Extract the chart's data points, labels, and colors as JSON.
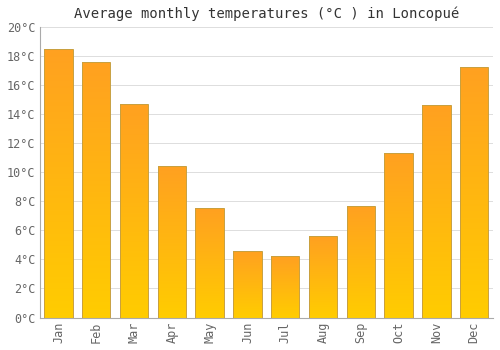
{
  "title": "Average monthly temperatures (°C ) in Loncopué",
  "months": [
    "Jan",
    "Feb",
    "Mar",
    "Apr",
    "May",
    "Jun",
    "Jul",
    "Aug",
    "Sep",
    "Oct",
    "Nov",
    "Dec"
  ],
  "values": [
    18.5,
    17.6,
    14.7,
    10.4,
    7.5,
    4.6,
    4.2,
    5.6,
    7.7,
    11.3,
    14.6,
    17.2
  ],
  "ylim": [
    0,
    20
  ],
  "yticks": [
    0,
    2,
    4,
    6,
    8,
    10,
    12,
    14,
    16,
    18,
    20
  ],
  "ytick_labels": [
    "0°C",
    "2°C",
    "4°C",
    "6°C",
    "8°C",
    "10°C",
    "12°C",
    "14°C",
    "16°C",
    "18°C",
    "20°C"
  ],
  "bar_color_bottom": "#FFCC00",
  "bar_color_top": "#FFA020",
  "bar_edge_color": "#C8A040",
  "background_color": "#FFFFFF",
  "plot_bg_color": "#FFFFFF",
  "grid_color": "#DDDDDD",
  "title_fontsize": 10,
  "tick_fontsize": 8.5,
  "bar_width": 0.75
}
